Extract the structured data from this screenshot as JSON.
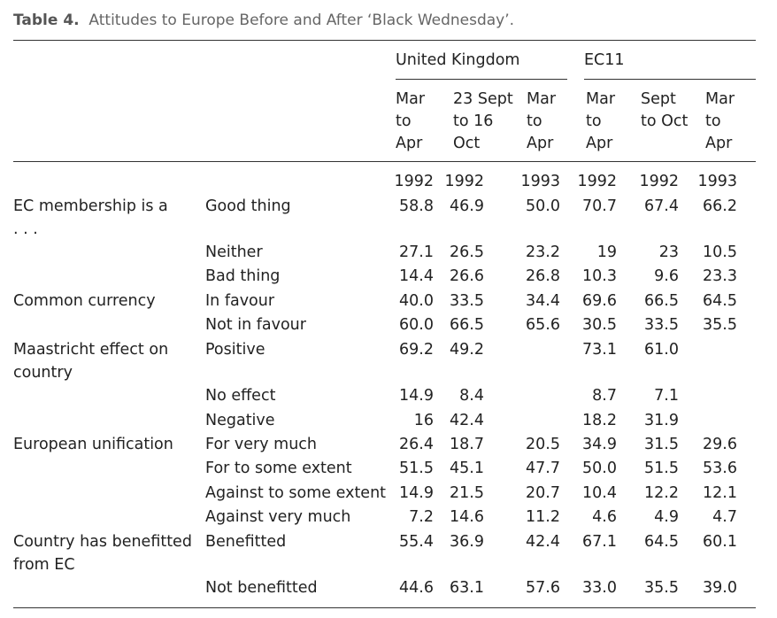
{
  "caption": {
    "label": "Table 4.",
    "text": "Attitudes to Europe Before and After ‘Black Wednesday’."
  },
  "groups": {
    "uk": "United Kingdom",
    "ec": "EC11"
  },
  "periods": [
    [
      "Mar",
      "to",
      "Apr"
    ],
    [
      "23 Sept",
      "to 16",
      "Oct"
    ],
    [
      "Mar",
      "to",
      "Apr"
    ],
    [
      "Mar",
      "to",
      "Apr"
    ],
    [
      "Sept",
      "to Oct",
      ""
    ],
    [
      "Mar",
      "to",
      "Apr"
    ]
  ],
  "years": [
    "1992",
    "1992",
    "1993",
    "1992",
    "1992",
    "1993"
  ],
  "rows": [
    {
      "item": [
        "EC membership is a",
        ". . ."
      ],
      "response": "Good thing",
      "values": [
        "58.8",
        "46.9",
        "50.0",
        "70.7",
        "67.4",
        "66.2"
      ]
    },
    {
      "item": [],
      "response": "Neither",
      "values": [
        "27.1",
        "26.5",
        "23.2",
        "19",
        "23",
        "10.5"
      ]
    },
    {
      "item": [],
      "response": "Bad thing",
      "values": [
        "14.4",
        "26.6",
        "26.8",
        "10.3",
        "9.6",
        "23.3"
      ]
    },
    {
      "item": [
        "Common currency"
      ],
      "response": "In favour",
      "values": [
        "40.0",
        "33.5",
        "34.4",
        "69.6",
        "66.5",
        "64.5"
      ]
    },
    {
      "item": [],
      "response": "Not in favour",
      "values": [
        "60.0",
        "66.5",
        "65.6",
        "30.5",
        "33.5",
        "35.5"
      ]
    },
    {
      "item": [
        "Maastricht effect on",
        "country"
      ],
      "response": "Positive",
      "values": [
        "69.2",
        "49.2",
        "",
        "73.1",
        "61.0",
        ""
      ]
    },
    {
      "item": [],
      "response": "No effect",
      "values": [
        "14.9",
        "8.4",
        "",
        "8.7",
        "7.1",
        ""
      ]
    },
    {
      "item": [],
      "response": "Negative",
      "values": [
        "16",
        "42.4",
        "",
        "18.2",
        "31.9",
        ""
      ]
    },
    {
      "item": [
        "European unification"
      ],
      "response": "For very much",
      "values": [
        "26.4",
        "18.7",
        "20.5",
        "34.9",
        "31.5",
        "29.6"
      ]
    },
    {
      "item": [],
      "response": "For to some extent",
      "values": [
        "51.5",
        "45.1",
        "47.7",
        "50.0",
        "51.5",
        "53.6"
      ]
    },
    {
      "item": [],
      "response": "Against to some extent",
      "values": [
        "14.9",
        "21.5",
        "20.7",
        "10.4",
        "12.2",
        "12.1"
      ]
    },
    {
      "item": [],
      "response": "Against very much",
      "values": [
        "7.2",
        "14.6",
        "11.2",
        "4.6",
        "4.9",
        "4.7"
      ]
    },
    {
      "item": [
        "Country has benefitted",
        "from EC"
      ],
      "response": "Benefitted",
      "values": [
        "55.4",
        "36.9",
        "42.4",
        "67.1",
        "64.5",
        "60.1"
      ]
    },
    {
      "item": [],
      "response": "Not benefitted",
      "values": [
        "44.6",
        "63.1",
        "57.6",
        "33.0",
        "35.5",
        "39.0"
      ]
    }
  ]
}
